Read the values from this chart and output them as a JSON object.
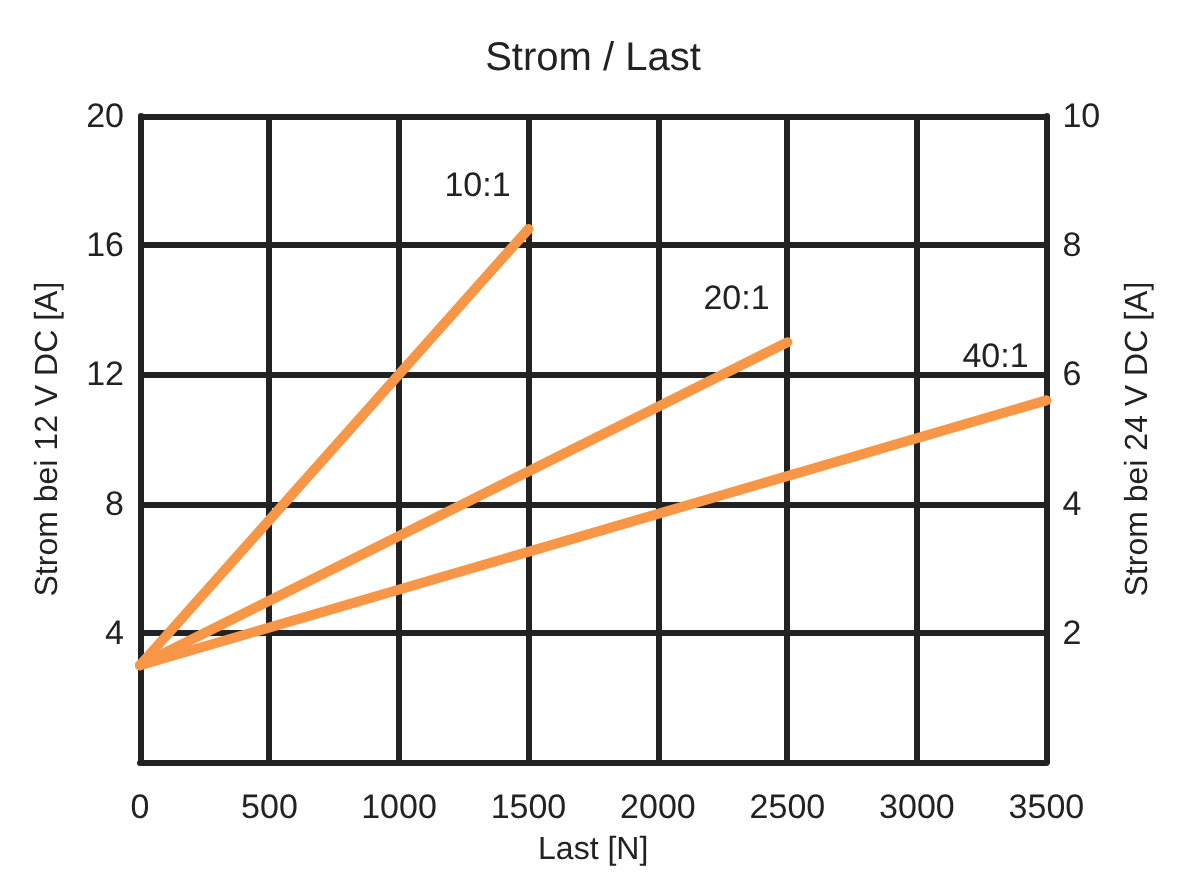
{
  "chart_data": {
    "type": "line",
    "title": "Strom / Last",
    "xlabel": "Last [N]",
    "ylabel": "Strom bei 12 V DC [A]",
    "y2label": "Strom bei 24 V DC [A]",
    "series": [
      {
        "name": "10:1",
        "color": "#f79646",
        "x": [
          0,
          1500
        ],
        "values": [
          3,
          16.5
        ]
      },
      {
        "name": "20:1",
        "color": "#f79646",
        "x": [
          0,
          2500
        ],
        "values": [
          3,
          13
        ]
      },
      {
        "name": "40:1",
        "color": "#f79646",
        "x": [
          0,
          3500
        ],
        "values": [
          3,
          11.2
        ]
      }
    ],
    "xlim": [
      0,
      3500
    ],
    "xticks": [
      0,
      500,
      1000,
      1500,
      2000,
      2500,
      3000,
      3500
    ],
    "ylim": [
      0,
      20
    ],
    "yticks": [
      4,
      8,
      12,
      16,
      20
    ],
    "y2lim": [
      0,
      10
    ],
    "y2ticks": [
      2,
      4,
      6,
      8,
      10
    ],
    "grid": true,
    "legend": false,
    "marker": "none",
    "line_style": "solid"
  }
}
